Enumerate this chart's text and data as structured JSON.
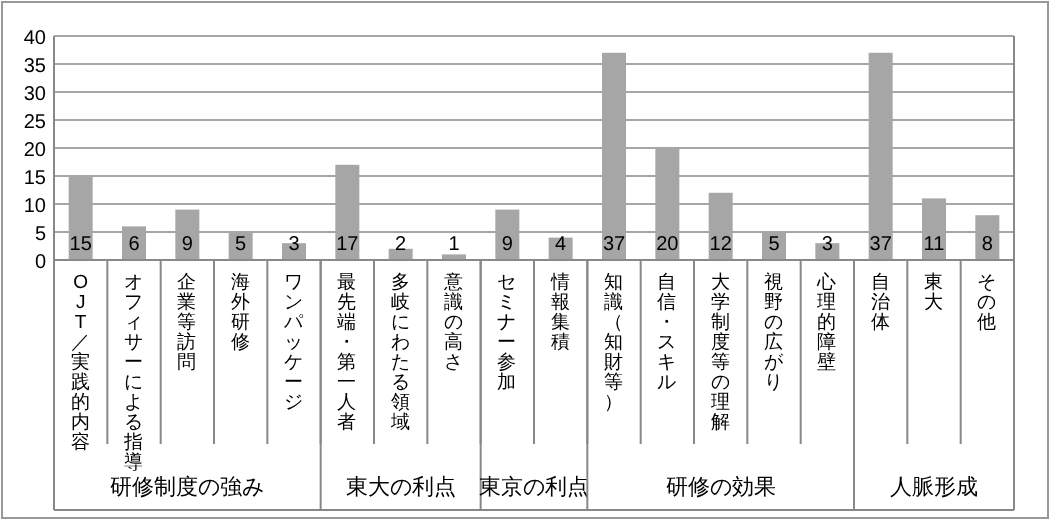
{
  "chart_data": {
    "type": "bar",
    "categories": [
      "OJT／実践的内容",
      "オフィサーによる指導",
      "企業等訪問",
      "海外研修",
      "ワンパッケージ",
      "最先端・第一人者",
      "多岐にわたる領域",
      "意識の高さ",
      "セミナー参加",
      "情報集積",
      "知識（知財等）",
      "自信・スキル",
      "大学制度等の理解",
      "視野の広がり",
      "心理的障壁",
      "自治体",
      "東大",
      "その他"
    ],
    "values": [
      15,
      6,
      9,
      5,
      3,
      17,
      2,
      1,
      9,
      4,
      37,
      20,
      12,
      5,
      3,
      37,
      11,
      8
    ],
    "color": "#a6a6a6",
    "ylim": [
      0,
      40
    ],
    "yticks": [
      0,
      5,
      10,
      15,
      20,
      25,
      30,
      35,
      40
    ],
    "grid": "y",
    "data_labels": true,
    "annotations": [
      "研修制度の強み",
      "東大の利点",
      "東京の利点",
      "研修の効果",
      "人脈形成"
    ]
  }
}
